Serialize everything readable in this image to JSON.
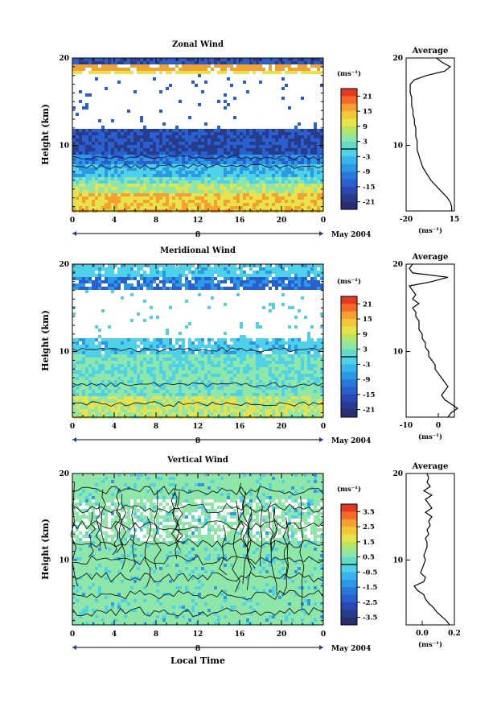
{
  "common": {
    "xlabel": "Local Time",
    "date_label": "May 2004",
    "day_label": "8",
    "unit_label": "(ms⁻¹)",
    "avg_title": "Average"
  },
  "chart_data": [
    {
      "type": "heatmap",
      "title": "Zonal Wind",
      "xlabel": "",
      "ylabel": "Height (km)",
      "xlim": [
        0,
        24
      ],
      "ylim": [
        2.5,
        20
      ],
      "x_ticks": [
        "0",
        "4",
        "8",
        "12",
        "16",
        "20",
        "0"
      ],
      "y_ticks": [
        "10",
        "20"
      ],
      "colorbar": {
        "unit": "(ms⁻¹)",
        "ticks": [
          "21",
          "15",
          "9",
          "3",
          "-3",
          "-9",
          "-15",
          "-21"
        ],
        "range": [
          -24,
          24
        ]
      },
      "profile": {
        "title": "Average",
        "xlim": [
          -20,
          15
        ],
        "x_ticks": [
          "-20",
          "15"
        ],
        "xlabel": "(ms⁻¹)",
        "height": [
          2.5,
          3,
          3.5,
          4,
          4.5,
          5,
          5.5,
          6,
          6.5,
          7,
          7.5,
          8,
          8.5,
          9,
          9.5,
          10,
          10.5,
          11,
          11.5,
          12,
          12.5,
          13,
          13.5,
          14,
          14.5,
          15,
          15.5,
          16,
          16.5,
          17,
          17.5,
          18,
          18.5,
          19,
          19.5,
          20
        ],
        "value": [
          13,
          13,
          12,
          10,
          7,
          4,
          1,
          -2,
          -4,
          -6,
          -8,
          -9,
          -10,
          -11,
          -12,
          -12,
          -12,
          -13,
          -13,
          -13,
          -14,
          -14,
          -15,
          -15,
          -16,
          -16,
          -16,
          -17,
          -17,
          -17,
          -14,
          -5,
          8,
          12,
          6,
          2
        ]
      }
    },
    {
      "type": "heatmap",
      "title": "Meridional Wind",
      "xlabel": "",
      "ylabel": "Height (km)",
      "xlim": [
        0,
        24
      ],
      "ylim": [
        2.5,
        20
      ],
      "x_ticks": [
        "0",
        "4",
        "8",
        "12",
        "16",
        "20",
        "0"
      ],
      "y_ticks": [
        "10",
        "20"
      ],
      "colorbar": {
        "unit": "(ms⁻¹)",
        "ticks": [
          "21",
          "15",
          "9",
          "3",
          "-3",
          "-9",
          "-15",
          "-21"
        ],
        "range": [
          -24,
          24
        ]
      },
      "profile": {
        "title": "Average",
        "xlim": [
          -10,
          5
        ],
        "x_ticks": [
          "-10",
          "0"
        ],
        "xlabel": "(ms⁻¹)",
        "height": [
          2.5,
          3,
          3.5,
          4,
          4.5,
          5,
          5.5,
          6,
          6.5,
          7,
          7.5,
          8,
          8.5,
          9,
          9.5,
          10,
          10.5,
          11,
          11.5,
          12,
          12.5,
          13,
          13.5,
          14,
          14.5,
          15,
          15.5,
          16,
          16.5,
          17,
          17.5,
          18,
          18.5,
          19,
          19.5,
          20
        ],
        "value": [
          3,
          4,
          6,
          4,
          2,
          1,
          2,
          3,
          2,
          1,
          0,
          -1,
          -1,
          -2,
          -3,
          -3,
          -4,
          -4,
          -5,
          -5,
          -6,
          -6,
          -6,
          -7,
          -7,
          -8,
          -6,
          -8,
          -7,
          -8,
          -9,
          -2,
          3,
          -8,
          -9,
          -8
        ]
      }
    },
    {
      "type": "heatmap",
      "title": "Vertical Wind",
      "xlabel": "Local Time",
      "ylabel": "Height (km)",
      "xlim": [
        0,
        24
      ],
      "ylim": [
        2.5,
        20
      ],
      "x_ticks": [
        "0",
        "4",
        "8",
        "12",
        "16",
        "20",
        "0"
      ],
      "y_ticks": [
        "10",
        "20"
      ],
      "colorbar": {
        "unit": "(ms⁻¹)",
        "ticks": [
          "3.5",
          "2.5",
          "1.5",
          "0.5",
          "-0.5",
          "-1.5",
          "-2.5",
          "-3.5"
        ],
        "range": [
          -4,
          4
        ]
      },
      "profile": {
        "title": "Average",
        "xlim": [
          -0.1,
          0.2
        ],
        "x_ticks": [
          "0.0",
          "0.2"
        ],
        "xlabel": "(ms⁻¹)",
        "height": [
          2.5,
          3,
          3.5,
          4,
          4.5,
          5,
          5.5,
          6,
          6.5,
          7,
          7.5,
          8,
          8.5,
          9,
          9.5,
          10,
          10.5,
          11,
          11.5,
          12,
          12.5,
          13,
          13.5,
          14,
          14.5,
          15,
          15.5,
          16,
          16.5,
          17,
          17.5,
          18,
          18.5,
          19,
          19.5,
          20
        ],
        "value": [
          0.17,
          0.15,
          0.12,
          0.09,
          0.07,
          0.04,
          0.02,
          0.01,
          -0.03,
          -0.05,
          0.01,
          0.02,
          -0.01,
          0.0,
          0.01,
          0.02,
          0.01,
          0.02,
          0.03,
          0.03,
          0.02,
          0.04,
          0.03,
          0.05,
          0.04,
          0.06,
          0.02,
          0.06,
          0.04,
          0.02,
          0.06,
          0.01,
          0.05,
          0.03,
          0.04,
          0.03
        ]
      }
    }
  ]
}
